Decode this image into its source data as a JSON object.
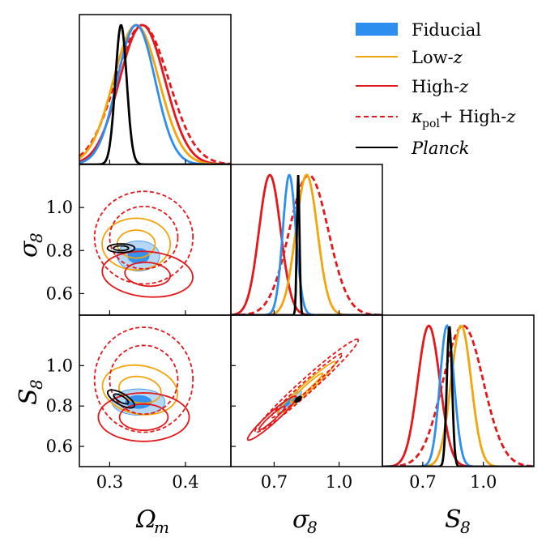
{
  "colors": {
    "fiducial": "#2e8ef0",
    "fiducial_fill_outer": "#9ec9f2",
    "fiducial_fill_inner": "#2e8ef0",
    "low_z": "#f2a50c",
    "high_z": "#e4181b",
    "kappa_pol_high_z": "#e4181b",
    "planck": "#000000"
  },
  "legend": {
    "placement": "top-right",
    "items": [
      {
        "key": "fiducial",
        "label": "Fiducial",
        "style": "filled-box"
      },
      {
        "key": "low_z",
        "label_main": "Low-",
        "label_var": "z",
        "style": "solid"
      },
      {
        "key": "high_z",
        "label_main": "High-",
        "label_var": "z",
        "style": "solid"
      },
      {
        "key": "kappa_pol_high_z",
        "label_kappa": "κ",
        "label_sub": "pol",
        "label_rest": " + High-",
        "label_var": "z",
        "style": "dashed"
      },
      {
        "key": "planck",
        "label": "Planck",
        "style": "solid"
      }
    ]
  },
  "chart_data": {
    "type": "corner",
    "parameters": [
      {
        "key": "omega_m",
        "label_main": "Ω",
        "label_sub": "m",
        "range": [
          0.26,
          0.46
        ],
        "ticks": [
          "0.3",
          "0.4"
        ],
        "tick_values": [
          0.3,
          0.4
        ]
      },
      {
        "key": "sigma_8",
        "label_main": "σ",
        "label_sub": "8",
        "range": [
          0.5,
          1.2
        ],
        "ticks": [
          "0.7",
          "0.8",
          "1.0"
        ],
        "tick_values": [
          0.7,
          0.8,
          1.0
        ],
        "ylabel_ticks": [
          "0.6",
          "0.8",
          "1.0"
        ],
        "ylabel_tick_values": [
          0.6,
          0.8,
          1.0
        ]
      },
      {
        "key": "s_8",
        "label_main": "S",
        "label_sub": "8",
        "range": [
          0.5,
          1.25
        ],
        "ticks": [
          "0.7",
          "0.8",
          "1.0"
        ],
        "tick_values": [
          0.7,
          0.8,
          1.0
        ],
        "ylabel_ticks": [
          "0.6",
          "0.8",
          "1.0"
        ],
        "ylabel_tick_values": [
          0.6,
          0.8,
          1.0
        ]
      }
    ],
    "bottom_ticks": {
      "omega_m": [
        "0.3",
        "0.4"
      ],
      "sigma_8": [
        "0.7",
        "1.0"
      ],
      "s_8": [
        "0.7",
        "1.0"
      ]
    },
    "left_ticks": {
      "sigma_8": [
        "0.6",
        "0.8",
        "1.0"
      ],
      "s_8": [
        "0.6",
        "0.8",
        "1.0"
      ]
    },
    "marginals": {
      "omega_m": [
        {
          "series": "fiducial",
          "mean": 0.335,
          "sd": 0.025
        },
        {
          "series": "low_z",
          "mean": 0.335,
          "sd": 0.03
        },
        {
          "series": "high_z",
          "mean": 0.343,
          "sd": 0.03
        },
        {
          "series": "kappa_pol_high_z",
          "mean": 0.343,
          "sd": 0.035
        },
        {
          "series": "planck",
          "mean": 0.315,
          "sd": 0.0075
        }
      ],
      "sigma_8": [
        {
          "series": "fiducial",
          "mean": 0.77,
          "sd": 0.03
        },
        {
          "series": "low_z",
          "mean": 0.85,
          "sd": 0.05
        },
        {
          "series": "high_z",
          "mean": 0.68,
          "sd": 0.05
        },
        {
          "series": "kappa_pol_high_z",
          "mean": 0.86,
          "sd": 0.09
        },
        {
          "series": "planck",
          "mean": 0.811,
          "sd": 0.006
        }
      ],
      "s_8": [
        {
          "series": "fiducial",
          "mean": 0.82,
          "sd": 0.035
        },
        {
          "series": "low_z",
          "mean": 0.89,
          "sd": 0.05
        },
        {
          "series": "high_z",
          "mean": 0.73,
          "sd": 0.055
        },
        {
          "series": "kappa_pol_high_z",
          "mean": 0.9,
          "sd": 0.1
        },
        {
          "series": "planck",
          "mean": 0.832,
          "sd": 0.013
        }
      ]
    },
    "contours": {
      "sigma_8_vs_omega_m": [
        {
          "series": "fiducial",
          "filled": true,
          "cx": 0.338,
          "cy": 0.775,
          "levels": [
            [
              0.028,
              0.07,
              0
            ],
            [
              0.014,
              0.035,
              0
            ]
          ]
        },
        {
          "series": "low_z",
          "cx": 0.335,
          "cy": 0.83,
          "levels": [
            [
              0.045,
              0.12,
              0
            ],
            [
              0.025,
              0.065,
              0
            ]
          ]
        },
        {
          "series": "high_z",
          "cx": 0.35,
          "cy": 0.69,
          "levels": [
            [
              0.06,
              0.105,
              -5
            ],
            [
              0.03,
              0.055,
              -5
            ]
          ]
        },
        {
          "series": "kappa_pol_high_z",
          "dashed": true,
          "cx": 0.345,
          "cy": 0.86,
          "levels": [
            [
              0.065,
              0.215,
              0
            ],
            [
              0.045,
              0.145,
              0
            ]
          ]
        },
        {
          "series": "planck",
          "cx": 0.315,
          "cy": 0.811,
          "levels": [
            [
              0.018,
              0.02,
              0
            ],
            [
              0.01,
              0.011,
              0
            ]
          ]
        }
      ],
      "s_8_vs_omega_m": [
        {
          "series": "fiducial",
          "filled": true,
          "cx": 0.338,
          "cy": 0.82,
          "levels": [
            [
              0.035,
              0.065,
              0
            ],
            [
              0.017,
              0.032,
              0
            ]
          ]
        },
        {
          "series": "low_z",
          "cx": 0.34,
          "cy": 0.88,
          "levels": [
            [
              0.05,
              0.12,
              -10
            ],
            [
              0.028,
              0.065,
              -10
            ]
          ]
        },
        {
          "series": "high_z",
          "cx": 0.345,
          "cy": 0.745,
          "levels": [
            [
              0.06,
              0.12,
              0
            ],
            [
              0.032,
              0.065,
              0
            ]
          ]
        },
        {
          "series": "kappa_pol_high_z",
          "dashed": true,
          "cx": 0.345,
          "cy": 0.93,
          "levels": [
            [
              0.065,
              0.26,
              0
            ],
            [
              0.045,
              0.17,
              0
            ]
          ]
        },
        {
          "series": "planck",
          "cx": 0.315,
          "cy": 0.835,
          "levels": [
            [
              0.02,
              0.028,
              -30
            ],
            [
              0.011,
              0.015,
              -30
            ]
          ]
        }
      ],
      "s_8_vs_sigma_8": [
        {
          "series": "fiducial",
          "filled": true,
          "cx": 0.77,
          "cy": 0.82,
          "levels": [
            [
              0.075,
              0.016,
              42
            ],
            [
              0.037,
              0.008,
              42
            ]
          ]
        },
        {
          "series": "low_z",
          "cx": 0.85,
          "cy": 0.89,
          "levels": [
            [
              0.18,
              0.022,
              42
            ],
            [
              0.1,
              0.012,
              42
            ]
          ]
        },
        {
          "series": "high_z",
          "cx": 0.69,
          "cy": 0.74,
          "levels": [
            [
              0.15,
              0.025,
              42
            ],
            [
              0.08,
              0.013,
              42
            ]
          ]
        },
        {
          "series": "kappa_pol_high_z",
          "dashed": true,
          "cx": 0.85,
          "cy": 0.9,
          "levels": [
            [
              0.32,
              0.035,
              42
            ],
            [
              0.22,
              0.022,
              42
            ]
          ]
        },
        {
          "series": "planck",
          "cx": 0.811,
          "cy": 0.833,
          "levels": [
            [
              0.018,
              0.008,
              42
            ],
            [
              0.009,
              0.004,
              42
            ]
          ]
        }
      ]
    }
  }
}
